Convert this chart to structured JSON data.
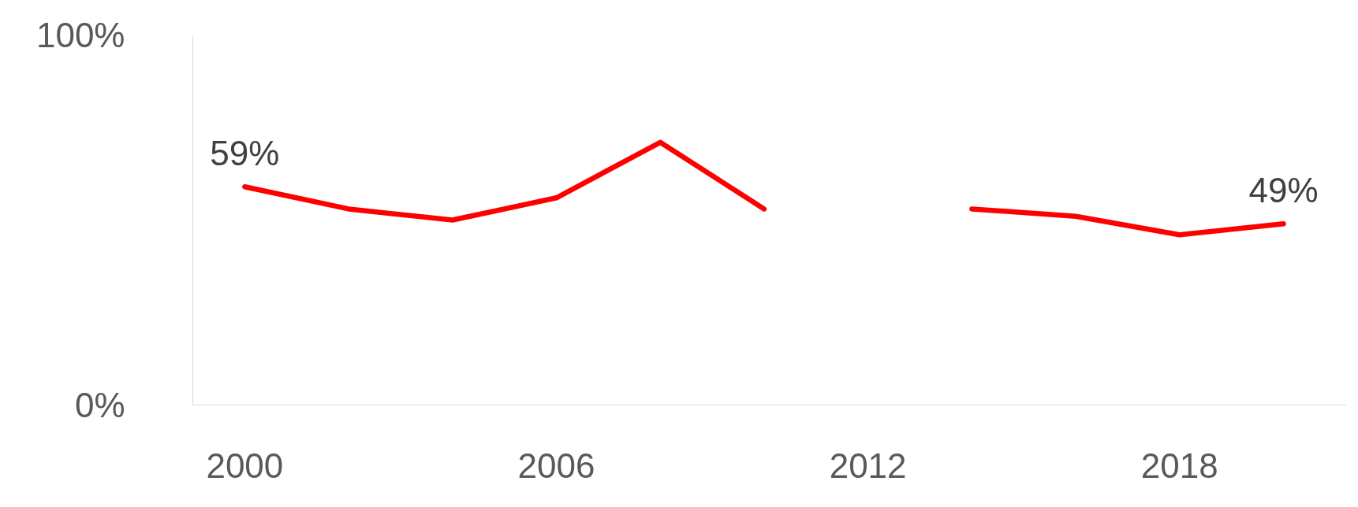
{
  "chart_data": {
    "type": "line",
    "x": [
      2000,
      2002,
      2004,
      2006,
      2008,
      2010,
      2012,
      2014,
      2016,
      2018,
      2020
    ],
    "series": [
      {
        "color": "#ff0000",
        "values": [
          59,
          53,
          50,
          56,
          71,
          53,
          null,
          53,
          51,
          46,
          49
        ],
        "value_labels": [
          "59%",
          null,
          null,
          null,
          null,
          null,
          null,
          null,
          null,
          null,
          "49%"
        ]
      }
    ],
    "xlim": [
      1999,
      2021.2
    ],
    "xticks": [
      2000,
      2006,
      2012,
      2018
    ],
    "ylim": [
      0,
      100
    ],
    "yticks": [
      {
        "value": 0,
        "label": "0%"
      },
      {
        "value": 100,
        "label": "100%"
      }
    ],
    "grid": false,
    "marker": "none",
    "line_style": "solid"
  }
}
